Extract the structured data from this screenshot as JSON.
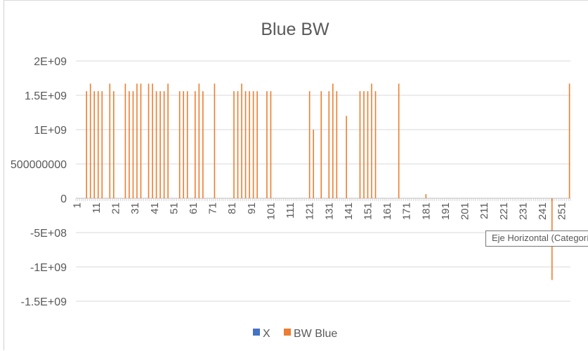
{
  "chart_data": {
    "type": "bar",
    "title": "Blue BW",
    "xlabel": "",
    "ylabel": "",
    "ylim": [
      -1500000000,
      2000000000
    ],
    "y_ticks": [
      {
        "value": 2000000000,
        "label": "2E+09"
      },
      {
        "value": 1500000000,
        "label": "1.5E+09"
      },
      {
        "value": 1000000000,
        "label": "1E+09"
      },
      {
        "value": 500000000,
        "label": "500000000"
      },
      {
        "value": 0,
        "label": "0"
      },
      {
        "value": -500000000,
        "label": "-5E+08"
      },
      {
        "value": -1000000000,
        "label": "-1E+09"
      },
      {
        "value": -1500000000,
        "label": "-1.5E+09"
      }
    ],
    "x_categories_range": [
      1,
      255
    ],
    "x_tick_labels": [
      "1",
      "11",
      "21",
      "31",
      "41",
      "51",
      "61",
      "71",
      "81",
      "91",
      "101",
      "111",
      "121",
      "131",
      "141",
      "151",
      "161",
      "171",
      "181",
      "191",
      "201",
      "211",
      "221",
      "231",
      "241",
      "251"
    ],
    "grid": true,
    "legend_position": "bottom",
    "series": [
      {
        "name": "X",
        "color": "#4472C4",
        "points": []
      },
      {
        "name": "BW Blue",
        "color": "#ED7D31",
        "points": [
          [
            6,
            1560000000
          ],
          [
            8,
            1670000000
          ],
          [
            10,
            1560000000
          ],
          [
            12,
            1560000000
          ],
          [
            14,
            1560000000
          ],
          [
            18,
            1670000000
          ],
          [
            20,
            1560000000
          ],
          [
            26,
            1670000000
          ],
          [
            28,
            1560000000
          ],
          [
            30,
            1560000000
          ],
          [
            32,
            1670000000
          ],
          [
            34,
            1670000000
          ],
          [
            38,
            1670000000
          ],
          [
            40,
            1670000000
          ],
          [
            42,
            1560000000
          ],
          [
            44,
            1560000000
          ],
          [
            46,
            1560000000
          ],
          [
            48,
            1670000000
          ],
          [
            54,
            1560000000
          ],
          [
            56,
            1560000000
          ],
          [
            58,
            1560000000
          ],
          [
            62,
            1560000000
          ],
          [
            64,
            1670000000
          ],
          [
            66,
            1560000000
          ],
          [
            72,
            1670000000
          ],
          [
            82,
            1560000000
          ],
          [
            84,
            1560000000
          ],
          [
            86,
            1670000000
          ],
          [
            88,
            1560000000
          ],
          [
            90,
            1560000000
          ],
          [
            92,
            1560000000
          ],
          [
            94,
            1560000000
          ],
          [
            99,
            1560000000
          ],
          [
            101,
            1560000000
          ],
          [
            121,
            1560000000
          ],
          [
            123,
            1000000000
          ],
          [
            127,
            1560000000
          ],
          [
            131,
            1560000000
          ],
          [
            133,
            1670000000
          ],
          [
            135,
            1560000000
          ],
          [
            140,
            1200000000
          ],
          [
            147,
            1560000000
          ],
          [
            149,
            1560000000
          ],
          [
            151,
            1560000000
          ],
          [
            153,
            1670000000
          ],
          [
            155,
            1560000000
          ],
          [
            167,
            1670000000
          ],
          [
            181,
            60000000
          ],
          [
            246,
            -1190000000
          ],
          [
            255,
            1670000000
          ]
        ]
      }
    ]
  },
  "tooltip": {
    "text": "Eje Horizontal (Categoría)"
  }
}
